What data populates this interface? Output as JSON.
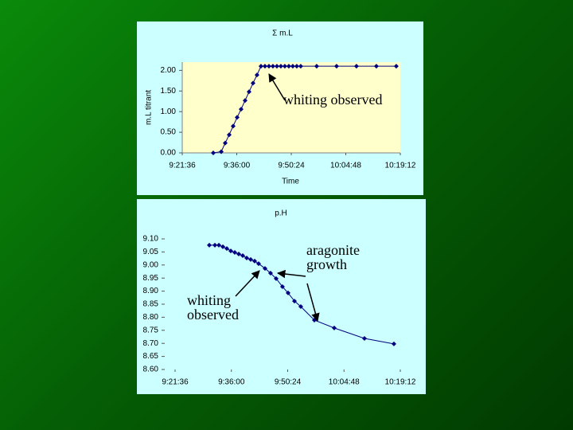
{
  "chart_data": [
    {
      "type": "line",
      "title": "Σ m.L",
      "y_label": "m.L titrant",
      "x_label": "Time",
      "annotations": [
        "whiting observed"
      ],
      "xlim": [
        33696,
        37152
      ],
      "xticks": [
        {
          "value": 33696,
          "label": "9:21:36"
        },
        {
          "value": 34560,
          "label": "9:36:00"
        },
        {
          "value": 35424,
          "label": "9:50:24"
        },
        {
          "value": 36288,
          "label": "10:04:48"
        },
        {
          "value": 37152,
          "label": "10:19:12"
        }
      ],
      "ylim": [
        0,
        2.2
      ],
      "yticks": [
        {
          "value": 0,
          "label": "0.00"
        },
        {
          "value": 0.5,
          "label": "0.50"
        },
        {
          "value": 1,
          "label": "1.00"
        },
        {
          "value": 1.5,
          "label": "1.50"
        },
        {
          "value": 2,
          "label": "2.00"
        }
      ],
      "series": [
        {
          "color": "#000080",
          "x": [
            34188,
            34314,
            34377,
            34440,
            34503,
            34566,
            34629,
            34692,
            34755,
            34818,
            34881,
            34944,
            35007,
            35070,
            35133,
            35196,
            35259,
            35322,
            35385,
            35448,
            35511,
            35574,
            35827,
            36142,
            36457,
            36773,
            37088
          ],
          "values": [
            0,
            0.03,
            0.24,
            0.44,
            0.65,
            0.86,
            1.06,
            1.27,
            1.48,
            1.69,
            1.89,
            2.1,
            2.1,
            2.1,
            2.1,
            2.1,
            2.1,
            2.1,
            2.1,
            2.1,
            2.1,
            2.1,
            2.1,
            2.1,
            2.1,
            2.1,
            2.1
          ]
        }
      ]
    },
    {
      "type": "line",
      "title": "p.H",
      "annotations": [
        "aragonite growth",
        "whiting observed"
      ],
      "xlim": [
        33696,
        37152
      ],
      "xticks": [
        {
          "value": 33696,
          "label": "9:21:36"
        },
        {
          "value": 34560,
          "label": "9:36:00"
        },
        {
          "value": 35424,
          "label": "9:50:24"
        },
        {
          "value": 36288,
          "label": "10:04:48"
        },
        {
          "value": 37152,
          "label": "10:19:12"
        }
      ],
      "ylim": [
        8.6,
        9.1
      ],
      "yticks": [
        {
          "value": 8.6,
          "label": "8.60"
        },
        {
          "value": 8.65,
          "label": "8.65"
        },
        {
          "value": 8.7,
          "label": "8.70"
        },
        {
          "value": 8.75,
          "label": "8.75"
        },
        {
          "value": 8.8,
          "label": "8.80"
        },
        {
          "value": 8.85,
          "label": "8.85"
        },
        {
          "value": 8.9,
          "label": "8.90"
        },
        {
          "value": 8.95,
          "label": "8.95"
        },
        {
          "value": 9.0,
          "label": "9.00"
        },
        {
          "value": 9.05,
          "label": "9.05"
        },
        {
          "value": 9.1,
          "label": "9.10"
        }
      ],
      "series": [
        {
          "color": "#000080",
          "x": [
            34221,
            34307,
            34368,
            34429,
            34490,
            34551,
            34612,
            34673,
            34734,
            34795,
            34856,
            34917,
            34978,
            35076,
            35161,
            35247,
            35344,
            35430,
            35528,
            35625,
            35833,
            36138,
            36602,
            37054
          ],
          "values": [
            9.076,
            9.076,
            9.076,
            9.07,
            9.063,
            9.054,
            9.048,
            9.042,
            9.036,
            9.027,
            9.021,
            9.015,
            9.005,
            8.987,
            8.969,
            8.948,
            8.917,
            8.893,
            8.862,
            8.841,
            8.789,
            8.759,
            8.719,
            8.698
          ]
        }
      ]
    }
  ]
}
